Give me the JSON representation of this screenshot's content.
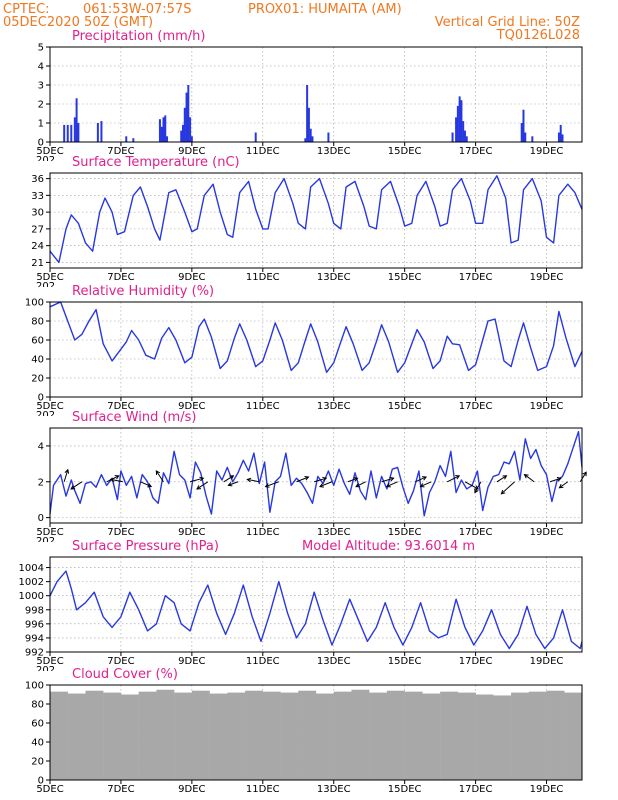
{
  "header": {
    "source": "CPTEC:",
    "coords": "061:53W-07:57S",
    "station": "PROX01: HUMAITA (AM)",
    "run": "05DEC2020 50Z (GMT)",
    "grid_note": "Vertical Grid Line: 50Z",
    "model_code": "TQ0126L028"
  },
  "x_axis": {
    "day_start": 5,
    "day_end": 20,
    "tick_labels": [
      "5DEC",
      "7DEC",
      "9DEC",
      "11DEC",
      "13DEC",
      "15DEC",
      "17DEC",
      "19DEC"
    ],
    "tick_days": [
      5,
      7,
      9,
      11,
      13,
      15,
      17,
      19
    ],
    "year_fragment": "202"
  },
  "colors": {
    "header": "#f07820",
    "panel_title": "#e0208c",
    "series": "#2838e0",
    "cloud": "#a8a8a8",
    "arrow": "#000000",
    "grid": "#9a9a9a"
  },
  "chart_data": [
    {
      "type": "bar",
      "title": "Precipitation (mm/h)",
      "ylim": [
        0,
        5
      ],
      "yticks": [
        0,
        1,
        2,
        3,
        4,
        5
      ],
      "grid": true,
      "series": [
        {
          "x": [
            5.4,
            5.5,
            5.6,
            5.7,
            5.75,
            5.8,
            6.35,
            6.45,
            7.15,
            7.35,
            8.1,
            8.15,
            8.2,
            8.25,
            8.3,
            8.7,
            8.75,
            8.8,
            8.85,
            8.9,
            8.95,
            9.0,
            10.8,
            12.2,
            12.25,
            12.3,
            12.35,
            12.4,
            12.85,
            16.35,
            16.45,
            16.5,
            16.55,
            16.6,
            16.65,
            16.7,
            16.75,
            18.3,
            18.35,
            18.4,
            18.6,
            19.35,
            19.4,
            19.45
          ],
          "values": [
            0.9,
            0.9,
            0.9,
            1.3,
            2.3,
            1.0,
            1.0,
            1.1,
            0.3,
            0.2,
            1.2,
            0.8,
            1.3,
            1.4,
            0.3,
            0.6,
            0.9,
            1.8,
            2.6,
            3.0,
            1.3,
            0.3,
            0.5,
            0.2,
            3.0,
            1.8,
            0.7,
            0.3,
            0.5,
            0.5,
            1.3,
            1.9,
            2.4,
            2.2,
            1.1,
            0.6,
            0.3,
            1.0,
            1.7,
            0.5,
            0.3,
            0.5,
            0.9,
            0.4
          ]
        }
      ]
    },
    {
      "type": "line",
      "title": "Surface Temperature (nC)",
      "ylim": [
        20,
        37
      ],
      "yticks": [
        21,
        24,
        27,
        30,
        33,
        36
      ],
      "grid": true,
      "series": [
        {
          "x": [
            5.0,
            5.25,
            5.45,
            5.6,
            5.8,
            6.0,
            6.2,
            6.4,
            6.55,
            6.75,
            6.9,
            7.1,
            7.35,
            7.55,
            7.75,
            7.95,
            8.1,
            8.35,
            8.55,
            8.8,
            9.0,
            9.15,
            9.35,
            9.6,
            9.8,
            10.0,
            10.15,
            10.35,
            10.6,
            10.8,
            11.0,
            11.15,
            11.35,
            11.6,
            11.85,
            12.0,
            12.2,
            12.35,
            12.6,
            12.85,
            13.0,
            13.2,
            13.35,
            13.6,
            13.85,
            14.0,
            14.2,
            14.35,
            14.6,
            14.85,
            15.0,
            15.2,
            15.35,
            15.6,
            15.85,
            16.0,
            16.2,
            16.35,
            16.6,
            16.85,
            17.0,
            17.2,
            17.35,
            17.6,
            17.85,
            18.0,
            18.2,
            18.35,
            18.6,
            18.85,
            19.0,
            19.2,
            19.35,
            19.6,
            19.8,
            20.0
          ],
          "values": [
            23.0,
            21.0,
            27.0,
            29.5,
            28.0,
            24.5,
            23.0,
            30.0,
            32.5,
            30.0,
            26.0,
            26.5,
            33.0,
            34.5,
            31.0,
            27.0,
            25.0,
            33.5,
            34.0,
            30.0,
            26.5,
            27.0,
            33.0,
            35.0,
            30.0,
            26.0,
            25.5,
            33.5,
            35.5,
            30.5,
            27.0,
            27.0,
            33.5,
            36.0,
            31.5,
            28.0,
            27.0,
            34.5,
            36.0,
            31.5,
            28.0,
            27.0,
            34.5,
            35.5,
            31.0,
            27.5,
            27.0,
            34.0,
            35.5,
            31.0,
            27.5,
            28.0,
            33.0,
            35.5,
            31.0,
            27.5,
            28.0,
            34.0,
            36.0,
            32.0,
            28.0,
            28.0,
            34.0,
            36.5,
            32.5,
            24.5,
            25.0,
            34.0,
            36.0,
            32.0,
            25.5,
            24.5,
            33.0,
            35.0,
            33.5,
            30.5
          ]
        }
      ]
    },
    {
      "type": "line",
      "title": "Relative Humidity (%)",
      "ylim": [
        0,
        100
      ],
      "yticks": [
        0,
        20,
        40,
        60,
        80,
        100
      ],
      "grid": true,
      "series": [
        {
          "x": [
            5.0,
            5.3,
            5.5,
            5.7,
            5.9,
            6.1,
            6.3,
            6.5,
            6.75,
            6.95,
            7.15,
            7.3,
            7.5,
            7.7,
            7.95,
            8.15,
            8.35,
            8.55,
            8.8,
            9.0,
            9.2,
            9.35,
            9.55,
            9.8,
            10.0,
            10.2,
            10.35,
            10.55,
            10.8,
            11.0,
            11.2,
            11.35,
            11.55,
            11.8,
            12.0,
            12.2,
            12.35,
            12.55,
            12.8,
            13.0,
            13.2,
            13.35,
            13.55,
            13.8,
            14.0,
            14.2,
            14.35,
            14.55,
            14.8,
            15.0,
            15.2,
            15.35,
            15.55,
            15.8,
            16.0,
            16.2,
            16.35,
            16.55,
            16.8,
            17.0,
            17.2,
            17.35,
            17.55,
            17.8,
            18.0,
            18.2,
            18.35,
            18.55,
            18.75,
            19.0,
            19.2,
            19.35,
            19.55,
            19.8,
            20.0
          ],
          "values": [
            95.0,
            100.0,
            80.0,
            60.0,
            66.0,
            80.0,
            92.0,
            56.0,
            38.0,
            48.0,
            58.0,
            70.0,
            60.0,
            44.0,
            40.0,
            62.0,
            73.0,
            60.0,
            36.0,
            42.0,
            74.0,
            82.0,
            63.0,
            30.0,
            38.0,
            62.0,
            77.0,
            60.0,
            32.0,
            38.0,
            60.0,
            78.0,
            60.0,
            28.0,
            36.0,
            60.0,
            77.0,
            58.0,
            26.0,
            36.0,
            58.0,
            74.0,
            56.0,
            28.0,
            36.0,
            58.0,
            76.0,
            58.0,
            26.0,
            36.0,
            56.0,
            71.0,
            58.0,
            30.0,
            38.0,
            64.0,
            56.0,
            55.0,
            28.0,
            34.0,
            60.0,
            80.0,
            82.0,
            38.0,
            32.0,
            60.0,
            78.0,
            52.0,
            28.0,
            32.0,
            54.0,
            90.0,
            62.0,
            32.0,
            48.0
          ]
        }
      ]
    },
    {
      "type": "line",
      "title": "Surface Wind (m/s)",
      "ylim": [
        -0.3,
        5.0
      ],
      "yticks": [
        0,
        2,
        4
      ],
      "grid": true,
      "series": [
        {
          "x": [
            5.0,
            5.1,
            5.3,
            5.45,
            5.6,
            5.7,
            5.85,
            6.0,
            6.15,
            6.3,
            6.45,
            6.6,
            6.75,
            6.9,
            7.0,
            7.15,
            7.3,
            7.45,
            7.6,
            7.75,
            7.9,
            8.05,
            8.2,
            8.35,
            8.5,
            8.65,
            8.8,
            8.95,
            9.1,
            9.25,
            9.4,
            9.55,
            9.7,
            9.85,
            10.0,
            10.15,
            10.3,
            10.45,
            10.6,
            10.75,
            10.9,
            11.05,
            11.2,
            11.35,
            11.5,
            11.65,
            11.8,
            11.95,
            12.1,
            12.25,
            12.4,
            12.55,
            12.7,
            12.85,
            13.0,
            13.15,
            13.3,
            13.45,
            13.6,
            13.75,
            13.9,
            14.05,
            14.2,
            14.35,
            14.5,
            14.65,
            14.8,
            14.95,
            15.1,
            15.25,
            15.4,
            15.55,
            15.7,
            15.85,
            16.0,
            16.15,
            16.3,
            16.45,
            16.6,
            16.75,
            16.9,
            17.05,
            17.2,
            17.35,
            17.5,
            17.65,
            17.8,
            17.95,
            18.1,
            18.25,
            18.4,
            18.55,
            18.7,
            18.85,
            19.0,
            19.15,
            19.3,
            19.45,
            19.6,
            19.75,
            19.9,
            20.0
          ],
          "values": [
            0.2,
            1.8,
            2.4,
            1.2,
            2.1,
            1.5,
            0.8,
            1.9,
            2.0,
            1.7,
            2.4,
            1.8,
            2.2,
            1.0,
            2.6,
            1.8,
            2.3,
            1.1,
            2.4,
            2.0,
            1.1,
            0.8,
            2.5,
            1.9,
            3.7,
            2.4,
            2.1,
            1.1,
            3.1,
            2.5,
            1.2,
            0.2,
            2.6,
            2.1,
            2.8,
            2.0,
            2.5,
            3.2,
            2.6,
            3.6,
            1.9,
            3.1,
            0.3,
            2.0,
            2.3,
            3.6,
            1.8,
            2.2,
            1.9,
            1.4,
            0.8,
            2.3,
            1.9,
            2.6,
            1.8,
            2.7,
            1.9,
            1.3,
            2.5,
            1.5,
            1.0,
            2.6,
            1.1,
            2.3,
            1.6,
            2.7,
            2.8,
            1.7,
            0.8,
            1.5,
            2.6,
            0.1,
            1.4,
            2.0,
            2.9,
            2.3,
            3.7,
            1.4,
            2.1,
            1.6,
            1.8,
            2.6,
            0.4,
            1.7,
            2.3,
            2.4,
            3.1,
            3.0,
            3.7,
            2.1,
            4.4,
            3.3,
            3.8,
            2.9,
            2.4,
            0.9,
            2.1,
            2.3,
            3.0,
            3.9,
            4.8,
            2.8
          ]
        }
      ],
      "arrows": {
        "x": [
          5.4,
          5.9,
          6.6,
          7.05,
          7.55,
          8.2,
          8.95,
          9.45,
          9.9,
          10.3,
          10.9,
          11.45,
          11.95,
          12.45,
          12.95,
          13.4,
          13.9,
          14.35,
          14.8,
          15.3,
          15.75,
          16.2,
          16.7,
          17.15,
          17.6,
          18.1,
          18.65,
          19.1,
          19.6,
          19.95
        ],
        "u": [
          0.3,
          -0.9,
          1.0,
          -1.0,
          0.9,
          -0.6,
          1.1,
          -0.9,
          0.8,
          -0.8,
          -1.0,
          -1.1,
          1.0,
          1.0,
          -1.0,
          0.8,
          -0.8,
          1.0,
          -0.9,
          0.9,
          -0.9,
          1.0,
          1.1,
          -0.5,
          0.8,
          -1.1,
          -0.8,
          0.9,
          -0.7,
          0.5
        ],
        "v": [
          1.0,
          -0.6,
          0.5,
          0.2,
          -0.4,
          0.9,
          0.3,
          -0.6,
          0.5,
          -0.3,
          0.2,
          -0.4,
          0.4,
          0.3,
          -0.4,
          0.3,
          -0.4,
          0.3,
          -0.4,
          0.4,
          -0.4,
          0.5,
          -0.6,
          -0.9,
          0.5,
          -1.0,
          0.6,
          0.3,
          -0.5,
          0.8
        ]
      }
    },
    {
      "type": "line",
      "title": "Surface Pressure (hPa)",
      "annotation": "Model Altitude: 93.6014 m",
      "ylim": [
        992,
        1005.5
      ],
      "yticks": [
        992,
        994,
        996,
        998,
        1000,
        1002,
        1004
      ],
      "grid": true,
      "series": [
        {
          "x": [
            5.0,
            5.2,
            5.45,
            5.6,
            5.75,
            6.0,
            6.25,
            6.5,
            6.75,
            7.0,
            7.25,
            7.5,
            7.75,
            8.0,
            8.25,
            8.5,
            8.7,
            8.95,
            9.2,
            9.45,
            9.7,
            9.95,
            10.2,
            10.45,
            10.7,
            10.95,
            11.2,
            11.45,
            11.7,
            11.95,
            12.2,
            12.45,
            12.7,
            12.95,
            13.2,
            13.45,
            13.7,
            13.95,
            14.2,
            14.45,
            14.7,
            14.95,
            15.2,
            15.45,
            15.7,
            15.95,
            16.2,
            16.45,
            16.7,
            16.95,
            17.2,
            17.45,
            17.7,
            17.95,
            18.2,
            18.45,
            18.7,
            18.95,
            19.2,
            19.45,
            19.7,
            19.95,
            20.0
          ],
          "values": [
            1000.0,
            1002.0,
            1003.5,
            1001.0,
            998.0,
            999.0,
            1000.5,
            997.0,
            995.5,
            997.0,
            1000.5,
            998.0,
            995.0,
            996.0,
            1000.0,
            999.0,
            996.0,
            995.0,
            999.0,
            1001.5,
            997.5,
            994.5,
            997.5,
            1001.5,
            997.0,
            993.5,
            997.5,
            1002.0,
            997.5,
            994.0,
            996.0,
            1000.5,
            996.5,
            993.0,
            996.0,
            999.5,
            996.5,
            993.5,
            995.5,
            999.0,
            995.5,
            993.0,
            995.5,
            999.0,
            995.0,
            994.0,
            994.5,
            999.5,
            995.5,
            993.0,
            995.0,
            998.0,
            994.5,
            992.5,
            994.5,
            998.5,
            994.5,
            992.5,
            994.0,
            998.0,
            993.5,
            992.5,
            993.5
          ]
        }
      ]
    },
    {
      "type": "bar",
      "title": "Cloud Cover (%)",
      "ylim": [
        0,
        100
      ],
      "yticks": [
        0,
        20,
        40,
        60,
        80,
        100
      ],
      "grid": true,
      "series": [
        {
          "x": [
            5.0,
            5.5,
            6.0,
            6.5,
            7.0,
            7.5,
            8.0,
            8.5,
            9.0,
            9.5,
            10.0,
            10.5,
            11.0,
            11.5,
            12.0,
            12.5,
            13.0,
            13.5,
            14.0,
            14.5,
            15.0,
            15.5,
            16.0,
            16.5,
            17.0,
            17.5,
            18.0,
            18.5,
            19.0,
            19.5,
            20.0
          ],
          "values": [
            93,
            91,
            94,
            92,
            90,
            93,
            95,
            92,
            94,
            91,
            92,
            94,
            93,
            92,
            94,
            91,
            93,
            95,
            92,
            94,
            93,
            91,
            93,
            92,
            90,
            89,
            92,
            93,
            94,
            92,
            91
          ]
        }
      ]
    }
  ]
}
